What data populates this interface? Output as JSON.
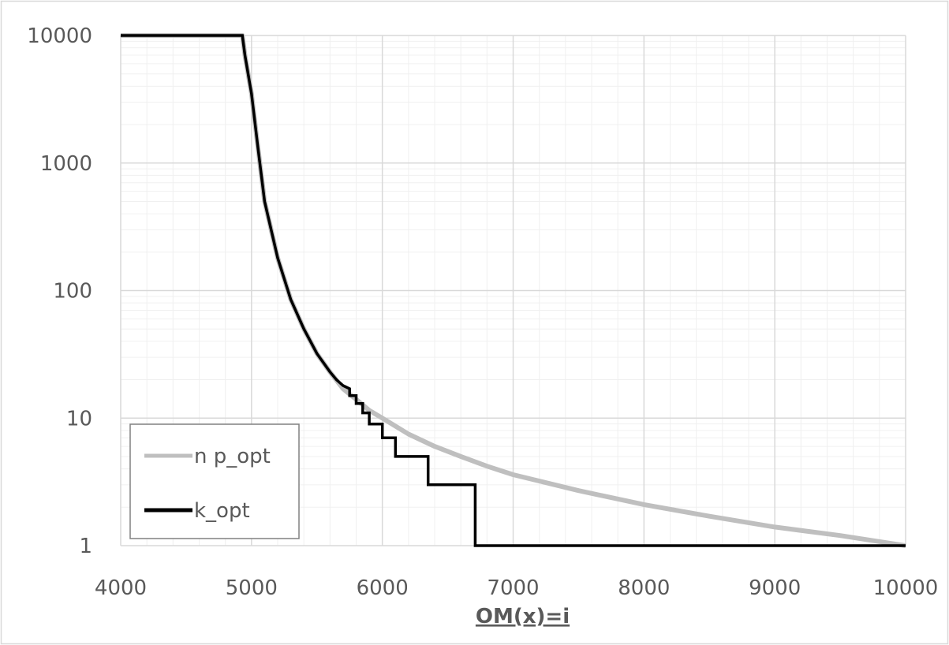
{
  "chart_data": {
    "type": "line",
    "title": "",
    "xlabel": "OM(x)=i",
    "ylabel": "",
    "xlim": [
      4000,
      10000
    ],
    "ylim": [
      1,
      10000
    ],
    "yscale": "log",
    "x_ticks": [
      "4000",
      "5000",
      "6000",
      "7000",
      "8000",
      "9000",
      "10000"
    ],
    "y_ticks": [
      "1",
      "10",
      "100",
      "1000",
      "10000"
    ],
    "grid": true,
    "legend_position": "bottom-left",
    "series": [
      {
        "name": "n p_opt",
        "color": "#bfbfbf",
        "x": [
          4000,
          4930,
          4950,
          5000,
          5050,
          5100,
          5200,
          5300,
          5400,
          5500,
          5600,
          5700,
          5800,
          5900,
          6000,
          6200,
          6400,
          6600,
          6800,
          7000,
          7500,
          8000,
          8500,
          9000,
          9500,
          10000
        ],
        "y": [
          10000,
          10000,
          7000,
          3500,
          1300,
          500,
          180,
          85,
          50,
          32,
          23,
          17,
          14,
          11.5,
          10,
          7.5,
          6,
          5,
          4.2,
          3.6,
          2.7,
          2.1,
          1.7,
          1.4,
          1.2,
          1.0
        ]
      },
      {
        "name": "k_opt",
        "color": "#000000",
        "x": [
          4000,
          4930,
          4950,
          5000,
          5050,
          5100,
          5200,
          5300,
          5400,
          5500,
          5600,
          5650,
          5700,
          5750,
          5750,
          5800,
          5800,
          5850,
          5850,
          5900,
          5900,
          5950,
          5950,
          6000,
          6000,
          6100,
          6100,
          6200,
          6200,
          6350,
          6350,
          6530,
          6530,
          6710,
          6710,
          10000
        ],
        "y": [
          10000,
          10000,
          7000,
          3500,
          1300,
          500,
          180,
          85,
          50,
          32,
          23,
          20,
          18,
          17,
          15,
          15,
          13,
          13,
          11,
          11,
          9,
          9,
          9,
          9,
          7,
          7,
          5,
          5,
          5,
          5,
          3,
          3,
          3,
          3,
          1,
          1
        ]
      }
    ]
  }
}
